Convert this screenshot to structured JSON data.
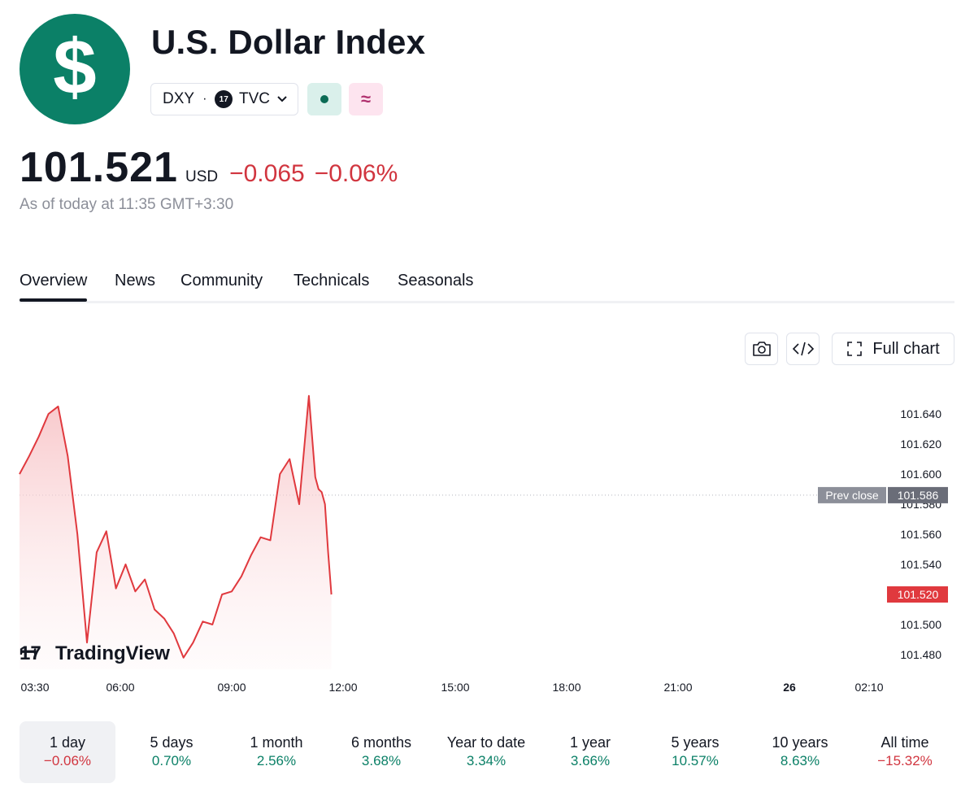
{
  "header": {
    "logo_glyph": "$",
    "logo_icon": "dollar-sign-icon",
    "title": "U.S. Dollar Index",
    "symbol": "DXY",
    "separator": "·",
    "exchange_badge": "17",
    "exchange": "TVC",
    "market_status_icon": "dot-icon",
    "delayed_icon": "≈"
  },
  "quote": {
    "price": "101.521",
    "currency": "USD",
    "change": "−0.065",
    "change_percent": "−0.06%",
    "as_of": "As of today at 11:35 GMT+3:30"
  },
  "tabs": [
    "Overview",
    "News",
    "Community",
    "Technicals",
    "Seasonals"
  ],
  "toolbar": {
    "full_chart_label": "Full chart"
  },
  "chart_data": {
    "type": "area",
    "x": [
      "03:30",
      "03:45",
      "04:00",
      "04:15",
      "04:30",
      "04:45",
      "05:00",
      "05:15",
      "05:30",
      "05:45",
      "06:00",
      "06:15",
      "06:30",
      "06:45",
      "07:00",
      "07:15",
      "07:30",
      "07:45",
      "08:00",
      "08:15",
      "08:30",
      "08:45",
      "09:00",
      "09:15",
      "09:30",
      "09:45",
      "10:00",
      "10:15",
      "10:30",
      "10:45",
      "11:00",
      "11:10",
      "11:15",
      "11:20",
      "11:25",
      "11:30",
      "11:35"
    ],
    "values": [
      101.6,
      101.612,
      101.625,
      101.64,
      101.645,
      101.612,
      101.56,
      101.488,
      101.548,
      101.562,
      101.524,
      101.54,
      101.522,
      101.53,
      101.51,
      101.504,
      101.494,
      101.478,
      101.488,
      101.502,
      101.5,
      101.52,
      101.522,
      101.532,
      101.546,
      101.558,
      101.556,
      101.6,
      101.61,
      101.58,
      101.652,
      101.598,
      101.59,
      101.588,
      101.58,
      101.548,
      101.52
    ],
    "prev_close": 101.586,
    "prev_close_label": "Prev close",
    "prev_close_value": "101.586",
    "last_value": "101.520",
    "y_ticks": [
      "101.640",
      "101.620",
      "101.600",
      "101.580",
      "101.560",
      "101.540",
      "101.500",
      "101.480"
    ],
    "ylim": [
      101.47,
      101.66
    ],
    "x_ticks": [
      "03:30",
      "06:00",
      "09:00",
      "12:00",
      "15:00",
      "18:00",
      "21:00",
      "26",
      "02:10"
    ],
    "watermark": "TradingView",
    "line_color": "#e0393e",
    "fill_color": "#f7c1c4"
  },
  "periods": [
    {
      "label": "1 day",
      "value": "−0.06%",
      "dir": "neg"
    },
    {
      "label": "5 days",
      "value": "0.70%",
      "dir": "pos"
    },
    {
      "label": "1 month",
      "value": "2.56%",
      "dir": "pos"
    },
    {
      "label": "6 months",
      "value": "3.68%",
      "dir": "pos"
    },
    {
      "label": "Year to date",
      "value": "3.34%",
      "dir": "pos"
    },
    {
      "label": "1 year",
      "value": "3.66%",
      "dir": "pos"
    },
    {
      "label": "5 years",
      "value": "10.57%",
      "dir": "pos"
    },
    {
      "label": "10 years",
      "value": "8.63%",
      "dir": "pos"
    },
    {
      "label": "All time",
      "value": "−15.32%",
      "dir": "neg"
    }
  ]
}
